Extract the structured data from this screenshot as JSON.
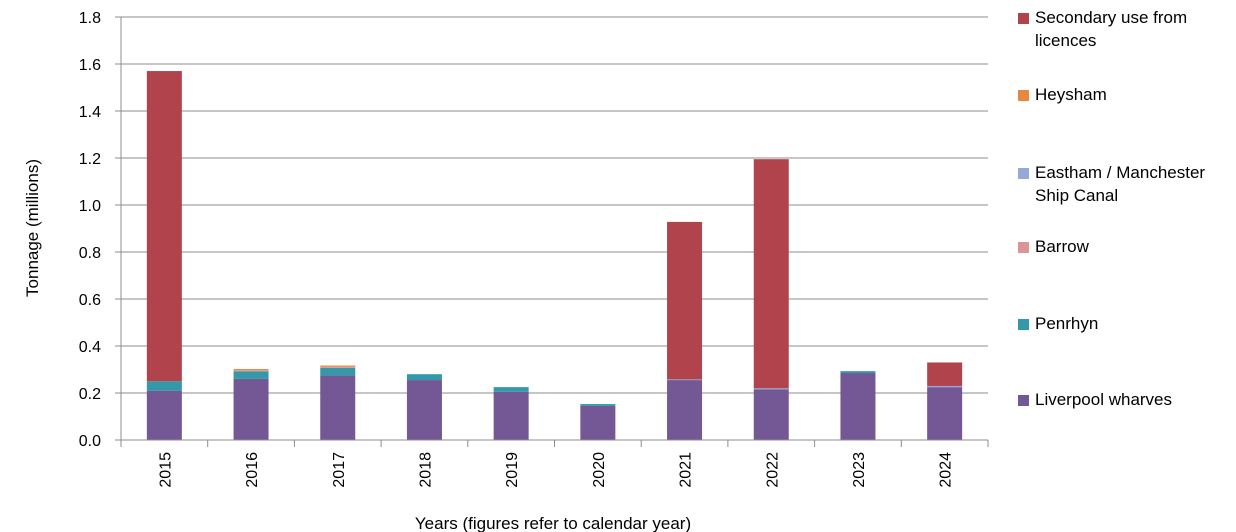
{
  "chart_data": {
    "type": "bar",
    "stacked": true,
    "categories": [
      "2015",
      "2016",
      "2017",
      "2018",
      "2019",
      "2020",
      "2021",
      "2022",
      "2023",
      "2024"
    ],
    "series": [
      {
        "name": "Liverpool wharves",
        "color": "#735895",
        "values": [
          0.21,
          0.26,
          0.275,
          0.255,
          0.205,
          0.145,
          0.255,
          0.215,
          0.285,
          0.225
        ]
      },
      {
        "name": "Penrhyn",
        "color": "#3399A8",
        "values": [
          0.04,
          0.032,
          0.032,
          0.025,
          0.02,
          0.008,
          0,
          0,
          0.008,
          0
        ]
      },
      {
        "name": "Barrow",
        "color": "#D99694",
        "values": [
          0,
          0.005,
          0.005,
          0,
          0,
          0,
          0,
          0,
          0,
          0
        ]
      },
      {
        "name": "Eastham / Manchester Ship Canal",
        "color": "#95A9D6",
        "values": [
          0,
          0,
          0,
          0,
          0,
          0,
          0.003,
          0.005,
          0,
          0.005
        ]
      },
      {
        "name": "Heysham",
        "color": "#E38940",
        "values": [
          0,
          0.005,
          0.005,
          0,
          0,
          0,
          0,
          0,
          0,
          0
        ]
      },
      {
        "name": "Secondary use from licences",
        "color": "#B0434B",
        "values": [
          1.32,
          0,
          0,
          0,
          0,
          0,
          0.67,
          0.975,
          0,
          0.1
        ]
      }
    ],
    "xlabel": "Years (figures refer to calendar year)",
    "ylabel": "Tonnage (millions)",
    "ylim": [
      0,
      1.8
    ],
    "yticks": [
      "0.0",
      "0.2",
      "0.4",
      "0.6",
      "0.8",
      "1.0",
      "1.2",
      "1.4",
      "1.6",
      "1.8"
    ],
    "grid": true,
    "legend_position": "right"
  },
  "legend": [
    {
      "label": "Secondary use from licences",
      "color": "#B0434B"
    },
    {
      "label": "Heysham",
      "color": "#E38940"
    },
    {
      "label": "Eastham / Manchester Ship Canal",
      "color": "#95A9D6"
    },
    {
      "label": "Barrow",
      "color": "#D99694"
    },
    {
      "label": "Penrhyn",
      "color": "#3399A8"
    },
    {
      "label": "Liverpool wharves",
      "color": "#735895"
    }
  ]
}
